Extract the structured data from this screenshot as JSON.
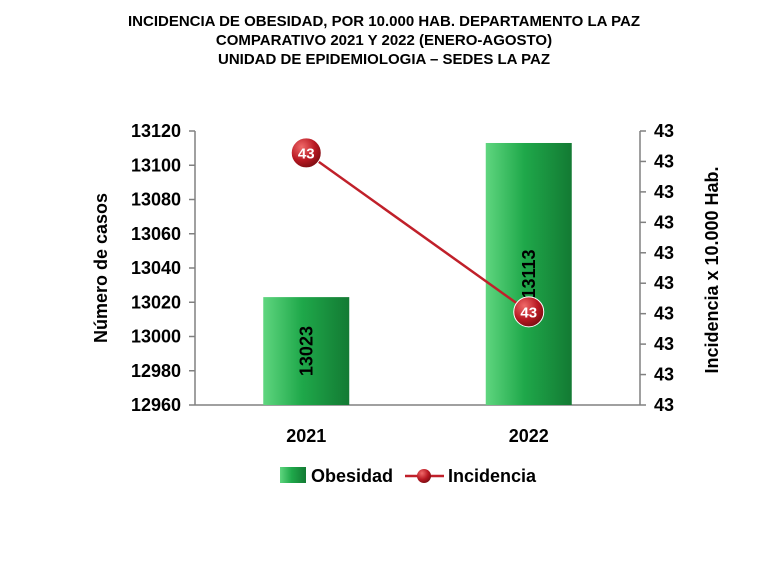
{
  "title_lines": [
    "INCIDENCIA  DE OBESIDAD,  POR 10.000 HAB. DEPARTAMENTO  LA PAZ",
    "COMPARATIVO  2021 Y 2022 (ENERO-AGOSTO)",
    "UNIDAD DE EPIDEMIOLOGIA – SEDES LA PAZ"
  ],
  "chart_data": {
    "type": "bar",
    "categories": [
      "2021",
      "2022"
    ],
    "series": [
      {
        "name": "Obesidad",
        "type": "bar",
        "axis": "left",
        "values": [
          13023,
          13113
        ],
        "data_labels": [
          "13023",
          "13113"
        ]
      },
      {
        "name": "Incidencia",
        "type": "line",
        "axis": "right",
        "values": [
          43.42,
          42.84
        ],
        "data_labels": [
          "43",
          "43"
        ]
      }
    ],
    "ylabel": "Número de casos",
    "ylim": [
      12960,
      13120
    ],
    "yticks": [
      "12960",
      "12980",
      "13000",
      "13020",
      "13040",
      "13060",
      "13080",
      "13100",
      "13120"
    ],
    "y2label": "Incidencia x 10.000 Hab.",
    "y2lim": [
      42.5,
      43.5
    ],
    "y2ticks": [
      "43",
      "43",
      "43",
      "43",
      "43",
      "43",
      "43",
      "43",
      "43",
      "43"
    ],
    "grid": false,
    "legend": "bottom",
    "colors": {
      "bar": "#1fa84a",
      "bar_light": "#5fd67f",
      "line": "#c0202a",
      "marker": "#b81822"
    }
  }
}
